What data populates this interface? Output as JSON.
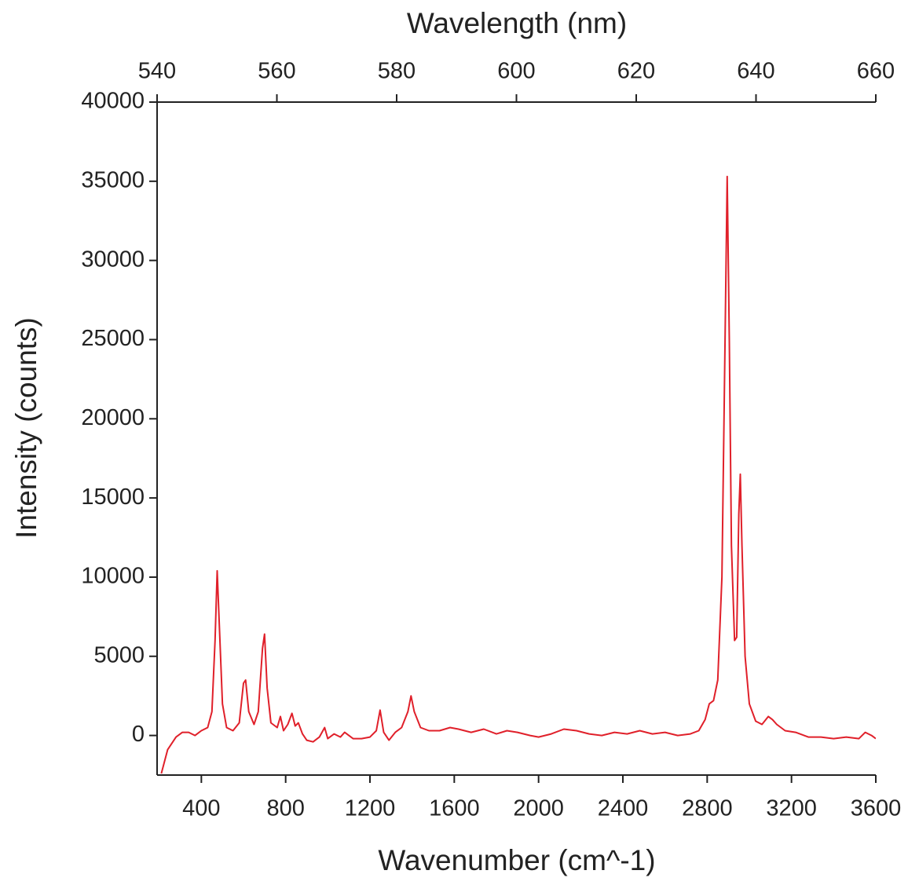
{
  "chart_data": {
    "type": "line",
    "xlabel": "Wavenumber (cm^-1)",
    "ylabel": "Intensity (counts)",
    "x2label": "Wavelength (nm)",
    "xlim": [
      190,
      3600
    ],
    "xticks": [
      400,
      800,
      1200,
      1600,
      2000,
      2400,
      2800,
      3200,
      3600
    ],
    "x2lim": [
      540,
      660
    ],
    "x2ticks": [
      540,
      560,
      580,
      600,
      620,
      640,
      660
    ],
    "ylim": [
      -2500,
      40000
    ],
    "yticks": [
      0,
      5000,
      10000,
      15000,
      20000,
      25000,
      30000,
      35000,
      40000
    ],
    "grid": false,
    "series": [
      {
        "color": "#e0202a",
        "x": [
          210,
          240,
          280,
          310,
          340,
          370,
          400,
          430,
          450,
          465,
          475,
          485,
          500,
          520,
          550,
          580,
          600,
          610,
          625,
          650,
          670,
          690,
          700,
          712,
          730,
          760,
          775,
          790,
          810,
          830,
          845,
          860,
          880,
          900,
          930,
          960,
          985,
          1000,
          1030,
          1060,
          1080,
          1120,
          1160,
          1200,
          1230,
          1248,
          1265,
          1290,
          1320,
          1350,
          1380,
          1395,
          1410,
          1440,
          1480,
          1530,
          1580,
          1620,
          1680,
          1740,
          1800,
          1850,
          1900,
          1960,
          2000,
          2060,
          2120,
          2180,
          2240,
          2300,
          2360,
          2420,
          2480,
          2540,
          2600,
          2660,
          2720,
          2760,
          2790,
          2810,
          2830,
          2850,
          2870,
          2885,
          2895,
          2905,
          2915,
          2930,
          2940,
          2950,
          2957,
          2965,
          2980,
          3000,
          3030,
          3060,
          3090,
          3110,
          3130,
          3170,
          3220,
          3280,
          3340,
          3400,
          3460,
          3520,
          3550,
          3580,
          3600
        ],
        "values": [
          -2400,
          -900,
          -100,
          200,
          200,
          0,
          300,
          500,
          1500,
          6000,
          10400,
          7000,
          2000,
          500,
          300,
          800,
          3300,
          3500,
          1500,
          700,
          1500,
          5500,
          6400,
          3000,
          800,
          500,
          1200,
          300,
          700,
          1400,
          600,
          800,
          100,
          -300,
          -400,
          -100,
          500,
          -200,
          100,
          -100,
          200,
          -200,
          -200,
          -100,
          300,
          1600,
          200,
          -300,
          200,
          500,
          1500,
          2500,
          1500,
          500,
          300,
          300,
          500,
          400,
          200,
          400,
          100,
          300,
          200,
          0,
          -100,
          100,
          400,
          300,
          100,
          0,
          200,
          100,
          300,
          100,
          200,
          0,
          100,
          300,
          1000,
          2000,
          2200,
          3500,
          10000,
          25000,
          35300,
          25000,
          12000,
          6000,
          6200,
          14000,
          16500,
          12000,
          5000,
          2000,
          900,
          700,
          1200,
          1000,
          700,
          300,
          200,
          -100,
          -100,
          -200,
          -100,
          -200,
          200,
          0,
          -200
        ]
      }
    ]
  }
}
